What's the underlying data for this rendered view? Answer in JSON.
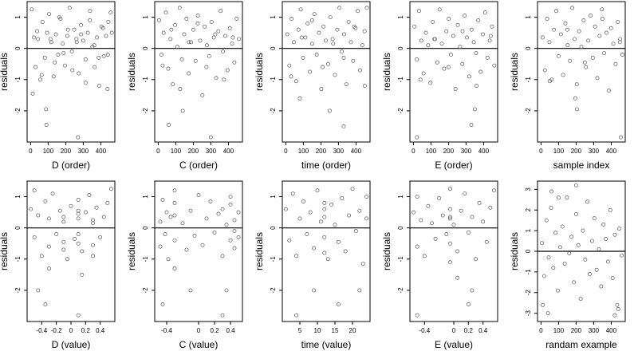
{
  "figure": {
    "colors": {
      "point": "#555555",
      "frame": "#000000",
      "ref_line": "#000000",
      "text": "#000000",
      "background": "#ffffff"
    }
  },
  "chart_data": [
    {
      "type": "scatter",
      "xlabel": "D (order)",
      "ylabel": "residuals",
      "xlim": [
        -20,
        480
      ],
      "ylim": [
        -3.0,
        1.5
      ],
      "xticks": [
        0,
        100,
        200,
        300,
        400
      ],
      "yticks": [
        -2,
        -1,
        0,
        1
      ],
      "reference_line": 0,
      "x": [
        7,
        19,
        28,
        42,
        55,
        68,
        81,
        94,
        105,
        118,
        131,
        144,
        157,
        170,
        183,
        196,
        209,
        222,
        235,
        248,
        261,
        274,
        287,
        300,
        313,
        326,
        339,
        352,
        365,
        378,
        391,
        404,
        417,
        430,
        443,
        456,
        12,
        37,
        63,
        88,
        113,
        138,
        163,
        188,
        213,
        238,
        263,
        288,
        313,
        338,
        363,
        388,
        413,
        438,
        463,
        90,
        270,
        440
      ],
      "y": [
        1.25,
        0.35,
        -0.6,
        0.3,
        -1.0,
        0.85,
        -0.3,
        0.5,
        1.1,
        0.2,
        -0.9,
        0.45,
        -0.2,
        0.95,
        0.15,
        -0.55,
        0.4,
        1.3,
        -0.1,
        0.6,
        0.3,
        -0.8,
        0.75,
        0.25,
        -0.35,
        0.5,
        1.2,
        0.05,
        -0.6,
        0.35,
        -1.2,
        0.7,
        -0.25,
        0.4,
        0.85,
        1.15,
        -1.45,
        0.55,
        -0.85,
        -1.95,
        0.3,
        -0.45,
        1.0,
        -0.15,
        0.6,
        -0.7,
        0.2,
        0.45,
        -1.1,
        0.9,
        0.1,
        -0.3,
        0.65,
        -1.3,
        0.5,
        -2.45,
        -2.85,
        -0.2
      ]
    },
    {
      "type": "scatter",
      "xlabel": "C (order)",
      "ylabel": "residuals",
      "xlim": [
        -20,
        480
      ],
      "ylim": [
        -3.0,
        1.5
      ],
      "xticks": [
        0,
        100,
        200,
        300,
        400
      ],
      "yticks": [
        -2,
        -1,
        0,
        1
      ],
      "reference_line": 0,
      "x": [
        5,
        18,
        31,
        44,
        57,
        70,
        83,
        96,
        109,
        122,
        135,
        148,
        161,
        174,
        187,
        200,
        213,
        226,
        239,
        252,
        265,
        278,
        291,
        304,
        317,
        330,
        343,
        356,
        369,
        382,
        395,
        408,
        421,
        434,
        447,
        460,
        25,
        75,
        125,
        175,
        225,
        275,
        325,
        375,
        425,
        60,
        140,
        300
      ],
      "y": [
        0.9,
        -0.2,
        0.5,
        1.15,
        -0.65,
        0.3,
        -1.15,
        0.75,
        0.05,
        1.3,
        -0.35,
        0.45,
        0.95,
        -0.8,
        0.2,
        0.6,
        -0.4,
        1.05,
        0.25,
        -1.5,
        0.7,
        0.1,
        -0.25,
        0.85,
        0.35,
        -0.95,
        0.55,
        1.2,
        -0.1,
        0.4,
        -0.7,
        0.65,
        0.15,
        -0.45,
        0.95,
        0.3,
        -0.55,
        0.6,
        -1.3,
        0.2,
        0.8,
        -0.6,
        0.45,
        -1.0,
        0.35,
        -2.45,
        -2.0,
        -2.85
      ]
    },
    {
      "type": "scatter",
      "xlabel": "time (order)",
      "ylabel": "residuals",
      "xlim": [
        -20,
        480
      ],
      "ylim": [
        -3.0,
        1.5
      ],
      "xticks": [
        0,
        100,
        200,
        300,
        400
      ],
      "yticks": [
        -2,
        -1,
        0,
        1
      ],
      "reference_line": 0,
      "x": [
        8,
        20,
        33,
        46,
        59,
        72,
        85,
        98,
        111,
        124,
        137,
        150,
        163,
        176,
        189,
        202,
        215,
        228,
        241,
        254,
        267,
        280,
        293,
        306,
        319,
        332,
        345,
        358,
        371,
        384,
        397,
        410,
        423,
        436,
        449,
        462,
        30,
        90,
        150,
        210,
        270,
        330,
        390,
        450,
        80,
        250,
        330
      ],
      "y": [
        0.45,
        -0.55,
        0.95,
        0.2,
        -1.05,
        0.6,
        1.25,
        -0.3,
        0.35,
        0.8,
        -0.75,
        0.15,
        1.1,
        -0.2,
        0.5,
        -1.3,
        0.7,
        0.25,
        -0.5,
        1.0,
        0.3,
        -0.85,
        0.6,
        1.3,
        -0.1,
        0.45,
        -1.15,
        0.85,
        0.2,
        -0.4,
        0.65,
        1.2,
        -0.7,
        0.1,
        0.55,
        1.3,
        -0.9,
        0.35,
        0.9,
        -0.6,
        0.15,
        -0.3,
        0.7,
        -1.2,
        -1.6,
        -2.0,
        -2.5
      ]
    },
    {
      "type": "scatter",
      "xlabel": "E (order)",
      "ylabel": "residuals",
      "xlim": [
        -20,
        480
      ],
      "ylim": [
        -3.0,
        1.5
      ],
      "xticks": [
        0,
        100,
        200,
        300,
        400
      ],
      "yticks": [
        -2,
        -1,
        0,
        1
      ],
      "reference_line": 0,
      "x": [
        6,
        19,
        32,
        45,
        58,
        71,
        84,
        97,
        110,
        123,
        136,
        149,
        162,
        175,
        188,
        201,
        214,
        227,
        240,
        253,
        266,
        279,
        292,
        305,
        318,
        331,
        344,
        357,
        370,
        383,
        396,
        409,
        422,
        435,
        448,
        461,
        40,
        120,
        200,
        280,
        360,
        440,
        350,
        330,
        20
      ],
      "y": [
        0.7,
        -0.35,
        1.2,
        0.25,
        -0.8,
        0.5,
        0.1,
        -1.1,
        0.85,
        0.3,
        -0.45,
        1.25,
        0.15,
        -0.65,
        0.55,
        0.95,
        -0.2,
        0.4,
        -1.3,
        0.75,
        0.05,
        -0.5,
        1.05,
        0.35,
        -0.9,
        0.6,
        0.2,
        -0.15,
        0.9,
        -0.75,
        0.45,
        1.15,
        -0.3,
        0.25,
        0.7,
        -0.55,
        -1.0,
        0.3,
        -0.6,
        0.55,
        -1.2,
        0.4,
        -1.95,
        -2.45,
        -2.85
      ]
    },
    {
      "type": "scatter",
      "xlabel": "sample index",
      "ylabel": "residuals",
      "xlim": [
        -20,
        480
      ],
      "ylim": [
        -3.0,
        1.5
      ],
      "xticks": [
        0,
        100,
        200,
        300,
        400
      ],
      "yticks": [
        -2,
        -1,
        0,
        1
      ],
      "reference_line": 0,
      "x": [
        9,
        22,
        35,
        48,
        61,
        74,
        87,
        100,
        113,
        126,
        139,
        152,
        165,
        178,
        191,
        204,
        217,
        230,
        243,
        256,
        269,
        282,
        295,
        308,
        321,
        334,
        347,
        360,
        373,
        386,
        399,
        412,
        425,
        438,
        451,
        464,
        50,
        150,
        250,
        350,
        450,
        195,
        205,
        455
      ],
      "y": [
        0.35,
        -0.7,
        0.95,
        0.2,
        -1.0,
        0.6,
        1.2,
        -0.25,
        0.45,
        -0.85,
        0.8,
        0.1,
        -0.4,
        1.3,
        0.3,
        -1.15,
        0.55,
        0.05,
        0.9,
        -0.6,
        0.25,
        1.05,
        -0.3,
        0.7,
        -0.95,
        0.4,
        1.25,
        -0.15,
        0.5,
        -1.35,
        0.65,
        0.15,
        -0.5,
        0.85,
        0.3,
        -0.2,
        -1.05,
        0.6,
        -0.45,
        0.95,
        0.2,
        -1.6,
        -1.95,
        -2.85
      ]
    },
    {
      "type": "scatter",
      "xlabel": "D (value)",
      "ylabel": "residuals",
      "xlim": [
        -0.6,
        0.6
      ],
      "ylim": [
        -3.0,
        1.5
      ],
      "xticks": [
        -0.4,
        -0.2,
        0.0,
        0.2,
        0.4
      ],
      "yticks": [
        -2,
        -1,
        0,
        1
      ],
      "reference_line": 0,
      "x": [
        -0.55,
        -0.5,
        -0.5,
        -0.45,
        -0.4,
        -0.35,
        -0.3,
        -0.3,
        -0.25,
        -0.2,
        -0.15,
        -0.1,
        -0.1,
        -0.1,
        -0.05,
        0.0,
        0.05,
        0.1,
        0.1,
        0.1,
        0.1,
        0.15,
        0.2,
        0.25,
        0.3,
        0.3,
        0.3,
        0.35,
        0.4,
        0.45,
        0.5,
        0.55,
        -0.1,
        0.1,
        0.1,
        0.3,
        -0.3,
        0.1,
        -0.45,
        -0.35,
        0.15
      ],
      "y": [
        0.6,
        -0.3,
        1.2,
        0.4,
        -0.9,
        0.85,
        0.3,
        -0.6,
        1.1,
        -0.2,
        0.55,
        0.35,
        -0.45,
        0.2,
        -1.0,
        0.7,
        -0.35,
        0.45,
        -0.2,
        0.9,
        0.3,
        -0.75,
        0.5,
        1.05,
        0.15,
        -0.55,
        -0.9,
        0.65,
        -0.3,
        0.35,
        0.8,
        1.25,
        -0.7,
        -0.5,
        0.55,
        0.25,
        -1.3,
        -2.8,
        -2.0,
        -2.45,
        -1.5
      ]
    },
    {
      "type": "scatter",
      "xlabel": "C (value)",
      "ylabel": "residuals",
      "xlim": [
        -0.55,
        0.55
      ],
      "ylim": [
        -3.0,
        1.5
      ],
      "xticks": [
        -0.4,
        0.0,
        0.2,
        0.4
      ],
      "yticks": [
        -2,
        -1,
        0,
        1
      ],
      "reference_line": 0,
      "x": [
        -0.48,
        -0.48,
        -0.45,
        -0.42,
        -0.4,
        -0.38,
        -0.35,
        -0.3,
        -0.3,
        -0.3,
        -0.2,
        -0.15,
        -0.1,
        -0.05,
        0.0,
        0.05,
        0.1,
        0.15,
        0.2,
        0.25,
        0.3,
        0.3,
        0.35,
        0.4,
        0.4,
        0.45,
        0.45,
        0.5,
        0.5,
        -0.3,
        -0.3,
        0.4,
        0.45,
        -0.45,
        -0.1,
        0.3,
        0.35
      ],
      "y": [
        0.2,
        -0.6,
        0.9,
        -0.2,
        0.5,
        -1.0,
        0.35,
        0.8,
        -0.4,
        1.2,
        0.15,
        -0.7,
        0.55,
        -0.25,
        1.05,
        -0.55,
        0.3,
        0.85,
        -0.15,
        0.45,
        -0.9,
        0.6,
        0.1,
        -0.4,
        0.75,
        0.25,
        -0.65,
        0.5,
        -0.3,
        -1.3,
        0.4,
        1.0,
        -0.1,
        -2.45,
        -2.0,
        -2.8,
        -2.0
      ]
    },
    {
      "type": "scatter",
      "xlabel": "time (value)",
      "ylabel": "residuals",
      "xlim": [
        0,
        25
      ],
      "ylim": [
        -3.0,
        1.5
      ],
      "xticks": [
        5,
        10,
        15,
        20
      ],
      "yticks": [
        -2,
        -1,
        0,
        1
      ],
      "reference_line": 0,
      "x": [
        1,
        2,
        3,
        4,
        5,
        6,
        7,
        8,
        9,
        10,
        11,
        12,
        12,
        12,
        13,
        14,
        15,
        16,
        17,
        18,
        19,
        20,
        21,
        22,
        23,
        24,
        24,
        4,
        9,
        12,
        12,
        16,
        22
      ],
      "y": [
        0.6,
        -0.4,
        1.1,
        -0.9,
        0.3,
        0.85,
        -0.2,
        0.5,
        -0.65,
        1.2,
        0.2,
        -0.3,
        0.6,
        0.35,
        -1.0,
        0.75,
        0.1,
        -0.45,
        0.95,
        -0.75,
        0.4,
        1.25,
        -0.1,
        0.55,
        -1.15,
        1.0,
        0.3,
        -2.8,
        -2.0,
        -0.8,
        0.8,
        -2.45,
        -2.0
      ]
    },
    {
      "type": "scatter",
      "xlabel": "E (value)",
      "ylabel": "residuals",
      "xlim": [
        -0.6,
        0.6
      ],
      "ylim": [
        -3.0,
        1.5
      ],
      "xticks": [
        -0.4,
        0.0,
        0.2,
        0.4
      ],
      "yticks": [
        -2,
        -1,
        0,
        1
      ],
      "reference_line": 0,
      "x": [
        -0.55,
        -0.5,
        -0.5,
        -0.45,
        -0.4,
        -0.35,
        -0.3,
        -0.25,
        -0.2,
        -0.15,
        -0.1,
        -0.05,
        -0.05,
        -0.05,
        -0.05,
        0.0,
        0.05,
        0.1,
        0.15,
        0.2,
        0.25,
        0.3,
        0.35,
        0.4,
        0.45,
        0.5,
        0.55,
        -0.05,
        -0.05,
        -0.5,
        0.25,
        0.05,
        0.2
      ],
      "y": [
        0.5,
        -0.6,
        1.0,
        0.25,
        -0.9,
        0.7,
        0.15,
        -0.35,
        0.95,
        0.4,
        -0.2,
        0.6,
        0.3,
        -0.5,
        1.25,
        0.1,
        -0.75,
        0.55,
        1.1,
        -0.15,
        0.35,
        -1.0,
        0.8,
        0.2,
        -0.45,
        0.65,
        1.2,
        -1.1,
        0.35,
        -2.8,
        -2.0,
        -1.6,
        -2.45
      ]
    },
    {
      "type": "scatter",
      "xlabel": "randam example",
      "ylabel": "residuals",
      "xlim": [
        -20,
        480
      ],
      "ylim": [
        -3.4,
        3.4
      ],
      "xticks": [
        0,
        100,
        200,
        300,
        400
      ],
      "yticks": [
        -3,
        -2,
        -1,
        0,
        1,
        2,
        3
      ],
      "reference_line": 0,
      "x": [
        5,
        18,
        31,
        44,
        57,
        70,
        83,
        96,
        109,
        122,
        135,
        148,
        161,
        174,
        187,
        200,
        213,
        226,
        239,
        252,
        265,
        278,
        291,
        304,
        317,
        330,
        343,
        356,
        369,
        382,
        395,
        408,
        421,
        434,
        447,
        460,
        60,
        100,
        200,
        420,
        440,
        10,
        40
      ],
      "y": [
        0.4,
        -1.2,
        1.5,
        -0.3,
        2.1,
        -0.8,
        0.9,
        -1.9,
        0.2,
        1.2,
        -0.6,
        2.6,
        -0.1,
        0.7,
        -1.5,
        1.8,
        0.3,
        -2.3,
        1.0,
        -0.4,
        2.4,
        -1.1,
        0.5,
        1.6,
        -0.9,
        0.1,
        -1.7,
        1.3,
        0.6,
        -0.5,
        2.0,
        -1.3,
        0.8,
        -2.6,
        1.1,
        -0.2,
        2.9,
        2.6,
        3.2,
        -3.1,
        -2.8,
        -2.6,
        -3.0
      ]
    }
  ]
}
